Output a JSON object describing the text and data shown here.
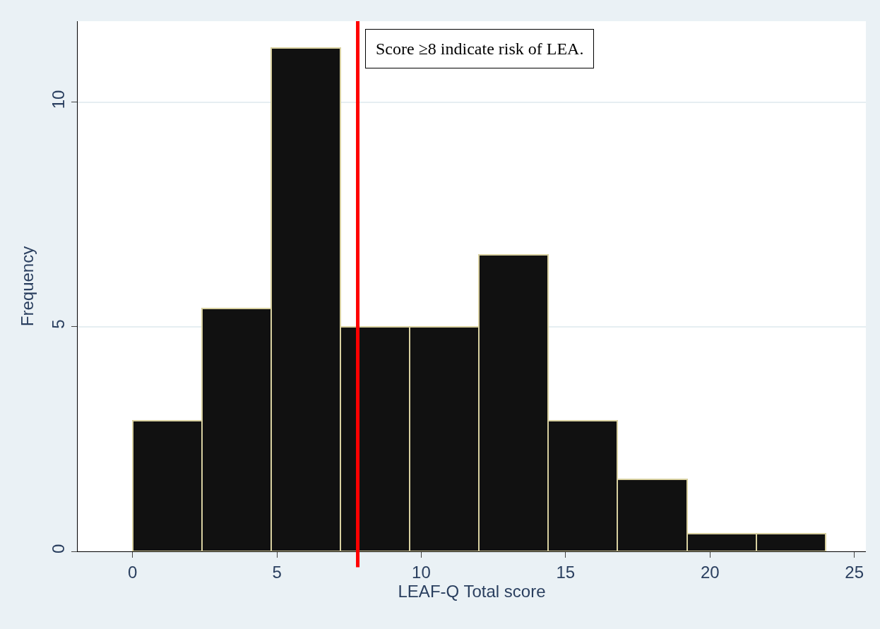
{
  "chart_data": {
    "type": "histogram",
    "xlabel": "LEAF-Q Total score",
    "ylabel": "Frequency",
    "bins": [
      0,
      2.4,
      4.8,
      7.2,
      9.6,
      12,
      14.4,
      16.8,
      19.2,
      21.6,
      24
    ],
    "values": [
      2.9,
      5.4,
      11.2,
      5.0,
      5.0,
      6.6,
      2.9,
      1.6,
      0.4,
      0.4
    ],
    "color": "#111111",
    "xlim": [
      -1.9,
      25.4
    ],
    "xticks": [
      0,
      5,
      10,
      15,
      20,
      25
    ],
    "ylim": [
      0,
      11.8
    ],
    "yticks": [
      0,
      5,
      10
    ],
    "grid": "y",
    "ref_lines": [
      {
        "axis": "x",
        "value": 7.8,
        "color": "#ff0000"
      }
    ],
    "annotations": [
      "Score ≥8 indicate risk of LEA."
    ]
  }
}
